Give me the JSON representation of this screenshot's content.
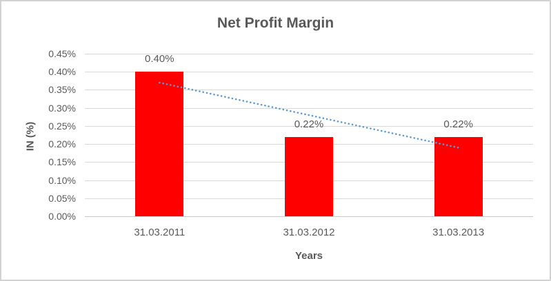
{
  "chart_data": {
    "type": "bar",
    "title": "Net Profit Margin",
    "xlabel": "Years",
    "ylabel": "IN (%)",
    "categories": [
      "31.03.2011",
      "31.03.2012",
      "31.03.2013"
    ],
    "series": [
      {
        "name": "Net Profit Margin",
        "values": [
          0.4,
          0.22,
          0.22
        ],
        "color": "#ff0000"
      }
    ],
    "data_labels": [
      "0.40%",
      "0.22%",
      "0.22%"
    ],
    "ylim": [
      0,
      0.45
    ],
    "ytick_step": 0.05,
    "ytick_labels": [
      "0.00%",
      "0.05%",
      "0.10%",
      "0.15%",
      "0.20%",
      "0.25%",
      "0.30%",
      "0.35%",
      "0.40%",
      "0.45%"
    ],
    "grid": true,
    "legend": "none",
    "trendline": {
      "type": "linear",
      "values": [
        0.37,
        0.28,
        0.19
      ],
      "color": "#5b9bd5",
      "style": "dotted"
    }
  },
  "colors": {
    "bar": "#ff0000",
    "trendline": "#5b9bd5",
    "text": "#595959",
    "gridline": "#d9d9d9",
    "axis": "#c9c9c9",
    "border": "#d2d2d2"
  }
}
